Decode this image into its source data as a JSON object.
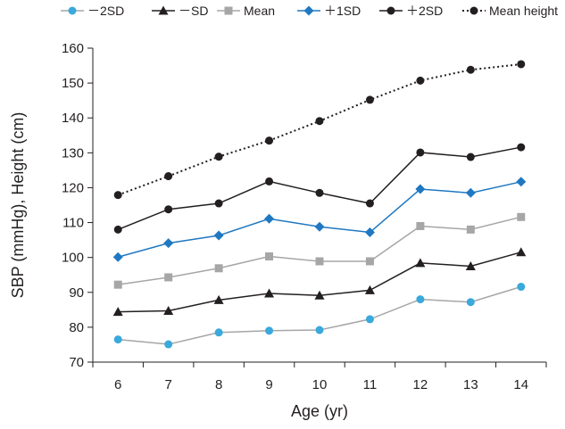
{
  "chart_data": {
    "type": "line",
    "title": "",
    "xlabel": "Age (yr)",
    "ylabel": "SBP (mmHg), Height (cm)",
    "ylim": [
      70,
      160
    ],
    "yticks": [
      70,
      80,
      90,
      100,
      110,
      120,
      130,
      140,
      150,
      160
    ],
    "categories": [
      "6",
      "7",
      "8",
      "9",
      "10",
      "11",
      "12",
      "13",
      "14"
    ],
    "legend_position": "top",
    "series": [
      {
        "name": "−2SD",
        "legend_label": "－2SD",
        "color": "#3aa9dc",
        "marker": "circle",
        "line_color": "#a6a6a6",
        "dashed": false,
        "values": [
          76.5,
          75.1,
          78.5,
          79.0,
          79.2,
          82.3,
          88.0,
          87.2,
          91.6
        ]
      },
      {
        "name": "−SD",
        "legend_label": "－SD",
        "color": "#231f20",
        "marker": "triangle",
        "line_color": "#231f20",
        "dashed": false,
        "values": [
          84.4,
          84.7,
          87.8,
          89.7,
          89.1,
          90.6,
          98.4,
          97.5,
          101.5
        ]
      },
      {
        "name": "Mean",
        "legend_label": "Mean",
        "color": "#a6a6a6",
        "marker": "square",
        "line_color": "#a6a6a6",
        "dashed": false,
        "values": [
          92.2,
          94.3,
          96.9,
          100.3,
          98.9,
          98.9,
          109.0,
          108.0,
          111.6
        ]
      },
      {
        "name": "+1SD",
        "legend_label": "＋1SD",
        "color": "#1f78c1",
        "marker": "diamond",
        "line_color": "#1f78c1",
        "dashed": false,
        "values": [
          100.1,
          104.1,
          106.3,
          111.1,
          108.8,
          107.2,
          119.6,
          118.5,
          121.7
        ]
      },
      {
        "name": "+2SD",
        "legend_label": "＋2SD",
        "color": "#231f20",
        "marker": "circle",
        "line_color": "#231f20",
        "dashed": false,
        "values": [
          108.0,
          113.8,
          115.5,
          121.8,
          118.5,
          115.5,
          130.1,
          128.8,
          131.6
        ]
      },
      {
        "name": "Mean height",
        "legend_label": "Mean height",
        "color": "#231f20",
        "marker": "circle",
        "line_color": "#231f20",
        "dashed": true,
        "values": [
          117.9,
          123.3,
          128.9,
          133.5,
          139.1,
          145.2,
          150.7,
          153.8,
          155.4
        ]
      }
    ]
  }
}
